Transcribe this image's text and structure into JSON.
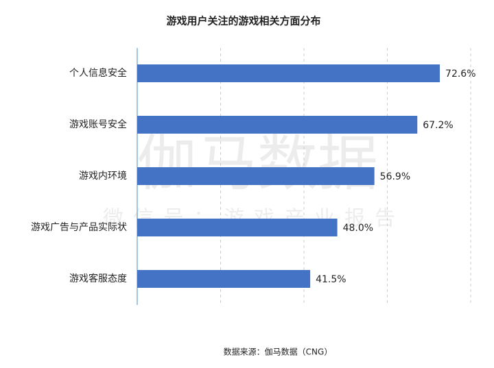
{
  "chart_data": {
    "type": "hbar",
    "title": "游戏用户关注的游戏相关方面分布",
    "categories": [
      "个人信息安全",
      "游戏账号安全",
      "游戏内环境",
      "游戏广告与产品实际状",
      "游戏客服态度"
    ],
    "values": [
      72.6,
      67.2,
      56.9,
      48.0,
      41.5
    ],
    "value_labels": [
      "72.6%",
      "67.2%",
      "56.9%",
      "48.0%",
      "41.5%"
    ],
    "color": "#4472c4",
    "xlim": [
      0,
      80
    ],
    "xticks": [
      0,
      20,
      40,
      60,
      80
    ],
    "grid": true,
    "source": "数据来源：伽马数据（CNG）"
  },
  "watermark": {
    "main": "伽马数据",
    "sub": "微信号：游戏产业报告"
  }
}
